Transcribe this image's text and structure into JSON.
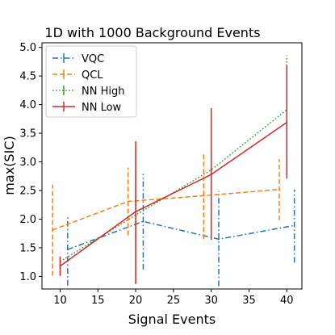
{
  "chart_data": {
    "type": "line",
    "title": "1D with 1000 Background Events",
    "xlabel": "Signal Events",
    "ylabel": "max(SIC)",
    "xlim": [
      7.6,
      42.0
    ],
    "ylim": [
      0.78,
      5.08
    ],
    "xticks": [
      {
        "value": 10,
        "label": "10"
      },
      {
        "value": 15,
        "label": "15"
      },
      {
        "value": 20,
        "label": "20"
      },
      {
        "value": 25,
        "label": "25"
      },
      {
        "value": 30,
        "label": "30"
      },
      {
        "value": 35,
        "label": "35"
      },
      {
        "value": 40,
        "label": "40"
      }
    ],
    "yticks": [
      {
        "value": 1.0,
        "label": "1.0"
      },
      {
        "value": 1.5,
        "label": "1.5"
      },
      {
        "value": 2.0,
        "label": "2.0"
      },
      {
        "value": 2.5,
        "label": "2.5"
      },
      {
        "value": 3.0,
        "label": "3.0"
      },
      {
        "value": 3.5,
        "label": "3.5"
      },
      {
        "value": 4.0,
        "label": "4.0"
      },
      {
        "value": 4.5,
        "label": "4.5"
      },
      {
        "value": 5.0,
        "label": "5.0"
      }
    ],
    "grid": false,
    "legend_position": "top-left",
    "series": [
      {
        "name": "VQC",
        "color": "#1f77b4",
        "style": "dashdot",
        "points": [
          {
            "x": 11.0,
            "y": 1.47,
            "low": 0.84,
            "high": 2.06
          },
          {
            "x": 21.0,
            "y": 1.96,
            "low": 1.12,
            "high": 2.79
          },
          {
            "x": 31.0,
            "y": 1.65,
            "low": 0.83,
            "high": 2.49
          },
          {
            "x": 41.0,
            "y": 1.89,
            "low": 1.24,
            "high": 2.52
          }
        ]
      },
      {
        "name": "QCL",
        "color": "#ff7f0e",
        "style": "dashed",
        "points": [
          {
            "x": 9.0,
            "y": 1.81,
            "low": 1.01,
            "high": 2.6
          },
          {
            "x": 19.0,
            "y": 2.31,
            "low": 1.72,
            "high": 2.9
          },
          {
            "x": 29.0,
            "y": 2.41,
            "low": 1.65,
            "high": 3.13
          },
          {
            "x": 39.0,
            "y": 2.52,
            "low": 1.98,
            "high": 3.05
          }
        ]
      },
      {
        "name": "NN High",
        "color": "#2ca02c",
        "style": "dotted",
        "points": [
          {
            "x": 10.0,
            "y": 1.26,
            "low": 1.02,
            "high": 1.31
          },
          {
            "x": 20.0,
            "y": 2.07,
            "low": 0.87,
            "high": 3.21
          },
          {
            "x": 30.0,
            "y": 2.86,
            "low": 1.72,
            "high": 3.89
          },
          {
            "x": 40.0,
            "y": 3.91,
            "low": 2.93,
            "high": 4.86
          }
        ]
      },
      {
        "name": "NN Low",
        "color": "#d62728",
        "style": "solid",
        "points": [
          {
            "x": 10.0,
            "y": 1.18,
            "low": 1.01,
            "high": 1.35
          },
          {
            "x": 20.0,
            "y": 2.13,
            "low": 0.87,
            "high": 3.36
          },
          {
            "x": 30.0,
            "y": 2.78,
            "low": 1.64,
            "high": 3.94
          },
          {
            "x": 40.0,
            "y": 3.69,
            "low": 2.71,
            "high": 4.68
          }
        ]
      }
    ]
  }
}
